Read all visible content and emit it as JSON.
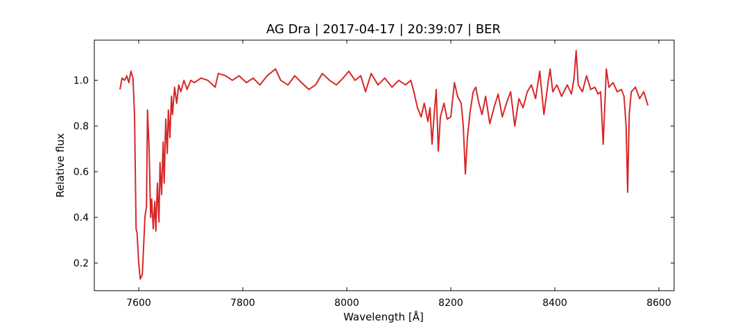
{
  "chart_data": {
    "type": "line",
    "title": "AG Dra | 2017-04-17 | 20:39:07 | BER",
    "x_label": "Wavelength [Å]",
    "y_label": "Relative flux",
    "xlim": [
      7514.7,
      8629.3
    ],
    "ylim": [
      0.079,
      1.176
    ],
    "xticks": [
      7600,
      7800,
      8000,
      8200,
      8400,
      8600
    ],
    "yticks": [
      0.2,
      0.4,
      0.6,
      0.8,
      {
        "value": 1,
        "label": "1.0"
      }
    ],
    "grid": false,
    "x": [
      7564,
      7568,
      7573,
      7577,
      7581,
      7585,
      7589,
      7592,
      7595,
      7597,
      7600,
      7603,
      7607,
      7609,
      7612,
      7615,
      7617,
      7620,
      7623,
      7625,
      7628,
      7631,
      7633,
      7636,
      7639,
      7641,
      7644,
      7647,
      7649,
      7652,
      7655,
      7657,
      7660,
      7663,
      7665,
      7669,
      7673,
      7677,
      7681,
      7687,
      7693,
      7700,
      7707,
      7720,
      7733,
      7747,
      7753,
      7767,
      7780,
      7793,
      7807,
      7820,
      7833,
      7847,
      7863,
      7873,
      7887,
      7900,
      7913,
      7927,
      7940,
      7953,
      7967,
      7980,
      7993,
      8004,
      8016,
      8027,
      8036,
      8047,
      8060,
      8073,
      8087,
      8100,
      8113,
      8123,
      8129,
      8136,
      8143,
      8149,
      8156,
      8160,
      8164,
      8168,
      8172,
      8176,
      8180,
      8187,
      8193,
      8200,
      8207,
      8213,
      8220,
      8224,
      8228,
      8232,
      8237,
      8243,
      8248,
      8253,
      8260,
      8267,
      8275,
      8283,
      8291,
      8299,
      8307,
      8315,
      8323,
      8331,
      8339,
      8347,
      8355,
      8363,
      8371,
      8379,
      8387,
      8391,
      8396,
      8404,
      8413,
      8424,
      8432,
      8437,
      8441,
      8445,
      8453,
      8461,
      8469,
      8477,
      8483,
      8488,
      8493,
      8499,
      8504,
      8512,
      8520,
      8528,
      8533,
      8537,
      8540,
      8543,
      8547,
      8555,
      8563,
      8571,
      8579
    ],
    "series": [
      {
        "name": "flux",
        "color": "#d62728",
        "values": [
          0.96,
          1.01,
          1.0,
          1.02,
          0.99,
          1.04,
          1.01,
          0.85,
          0.35,
          0.33,
          0.2,
          0.13,
          0.15,
          0.25,
          0.4,
          0.45,
          0.87,
          0.7,
          0.4,
          0.48,
          0.35,
          0.47,
          0.34,
          0.55,
          0.38,
          0.64,
          0.5,
          0.73,
          0.55,
          0.83,
          0.68,
          0.87,
          0.75,
          0.93,
          0.85,
          0.97,
          0.9,
          0.98,
          0.95,
          1.0,
          0.96,
          1.0,
          0.99,
          1.01,
          1.0,
          0.97,
          1.03,
          1.02,
          1.0,
          1.02,
          0.99,
          1.01,
          0.98,
          1.02,
          1.05,
          1.0,
          0.98,
          1.02,
          0.99,
          0.96,
          0.98,
          1.03,
          1.0,
          0.98,
          1.01,
          1.04,
          1.0,
          1.02,
          0.95,
          1.03,
          0.98,
          1.01,
          0.97,
          1.0,
          0.98,
          1.0,
          0.95,
          0.88,
          0.84,
          0.9,
          0.82,
          0.88,
          0.72,
          0.85,
          0.96,
          0.69,
          0.84,
          0.9,
          0.83,
          0.84,
          0.99,
          0.93,
          0.9,
          0.8,
          0.59,
          0.75,
          0.86,
          0.95,
          0.97,
          0.91,
          0.85,
          0.93,
          0.81,
          0.88,
          0.94,
          0.84,
          0.9,
          0.95,
          0.8,
          0.92,
          0.88,
          0.95,
          0.98,
          0.92,
          1.04,
          0.85,
          0.99,
          1.05,
          0.95,
          0.98,
          0.93,
          0.98,
          0.94,
          1.01,
          1.13,
          0.98,
          0.95,
          1.02,
          0.96,
          0.97,
          0.94,
          0.95,
          0.72,
          1.05,
          0.97,
          0.99,
          0.95,
          0.96,
          0.93,
          0.8,
          0.51,
          0.85,
          0.95,
          0.97,
          0.92,
          0.95,
          0.89
        ]
      }
    ]
  }
}
